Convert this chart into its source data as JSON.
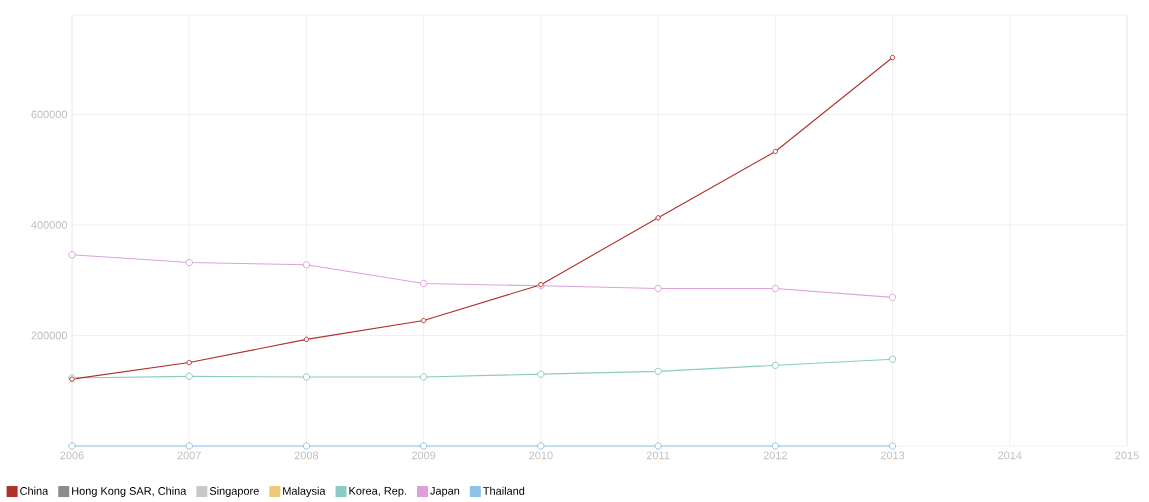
{
  "chart_data": {
    "type": "line",
    "x": [
      2006,
      2007,
      2008,
      2009,
      2010,
      2011,
      2012,
      2013
    ],
    "series": [
      {
        "name": "China",
        "color": "#b0302a",
        "values": [
          121000,
          151000,
          193000,
          227000,
          292000,
          413000,
          533000,
          703000
        ]
      },
      {
        "name": "Hong Kong SAR, China",
        "color": "#8c8c8c",
        "values": [
          null,
          null,
          null,
          null,
          null,
          null,
          null,
          null
        ]
      },
      {
        "name": "Singapore",
        "color": "#c8c8c8",
        "values": [
          null,
          null,
          null,
          null,
          null,
          null,
          null,
          null
        ]
      },
      {
        "name": "Malaysia",
        "color": "#f0c87a",
        "values": [
          null,
          null,
          null,
          null,
          null,
          null,
          null,
          null
        ]
      },
      {
        "name": "Korea, Rep.",
        "color": "#8ccac4",
        "values": [
          123000,
          126000,
          125000,
          125000,
          130000,
          135000,
          146000,
          157000
        ]
      },
      {
        "name": "Japan",
        "color": "#dda0dd",
        "values": [
          346000,
          332000,
          328000,
          294000,
          290000,
          285000,
          285000,
          269000
        ]
      },
      {
        "name": "Thailand",
        "color": "#8ec3ea",
        "values": [
          0,
          0,
          0,
          0,
          0,
          0,
          0,
          0
        ]
      }
    ],
    "xlim": [
      2006,
      2015
    ],
    "xticks": [
      2006,
      2007,
      2008,
      2009,
      2010,
      2011,
      2012,
      2013,
      2014,
      2015
    ],
    "ylim": [
      0,
      780000
    ],
    "yticks": [
      200000,
      400000,
      600000
    ],
    "grid": true,
    "legend": "bottom",
    "marker": "circle",
    "line_style": "solid"
  }
}
